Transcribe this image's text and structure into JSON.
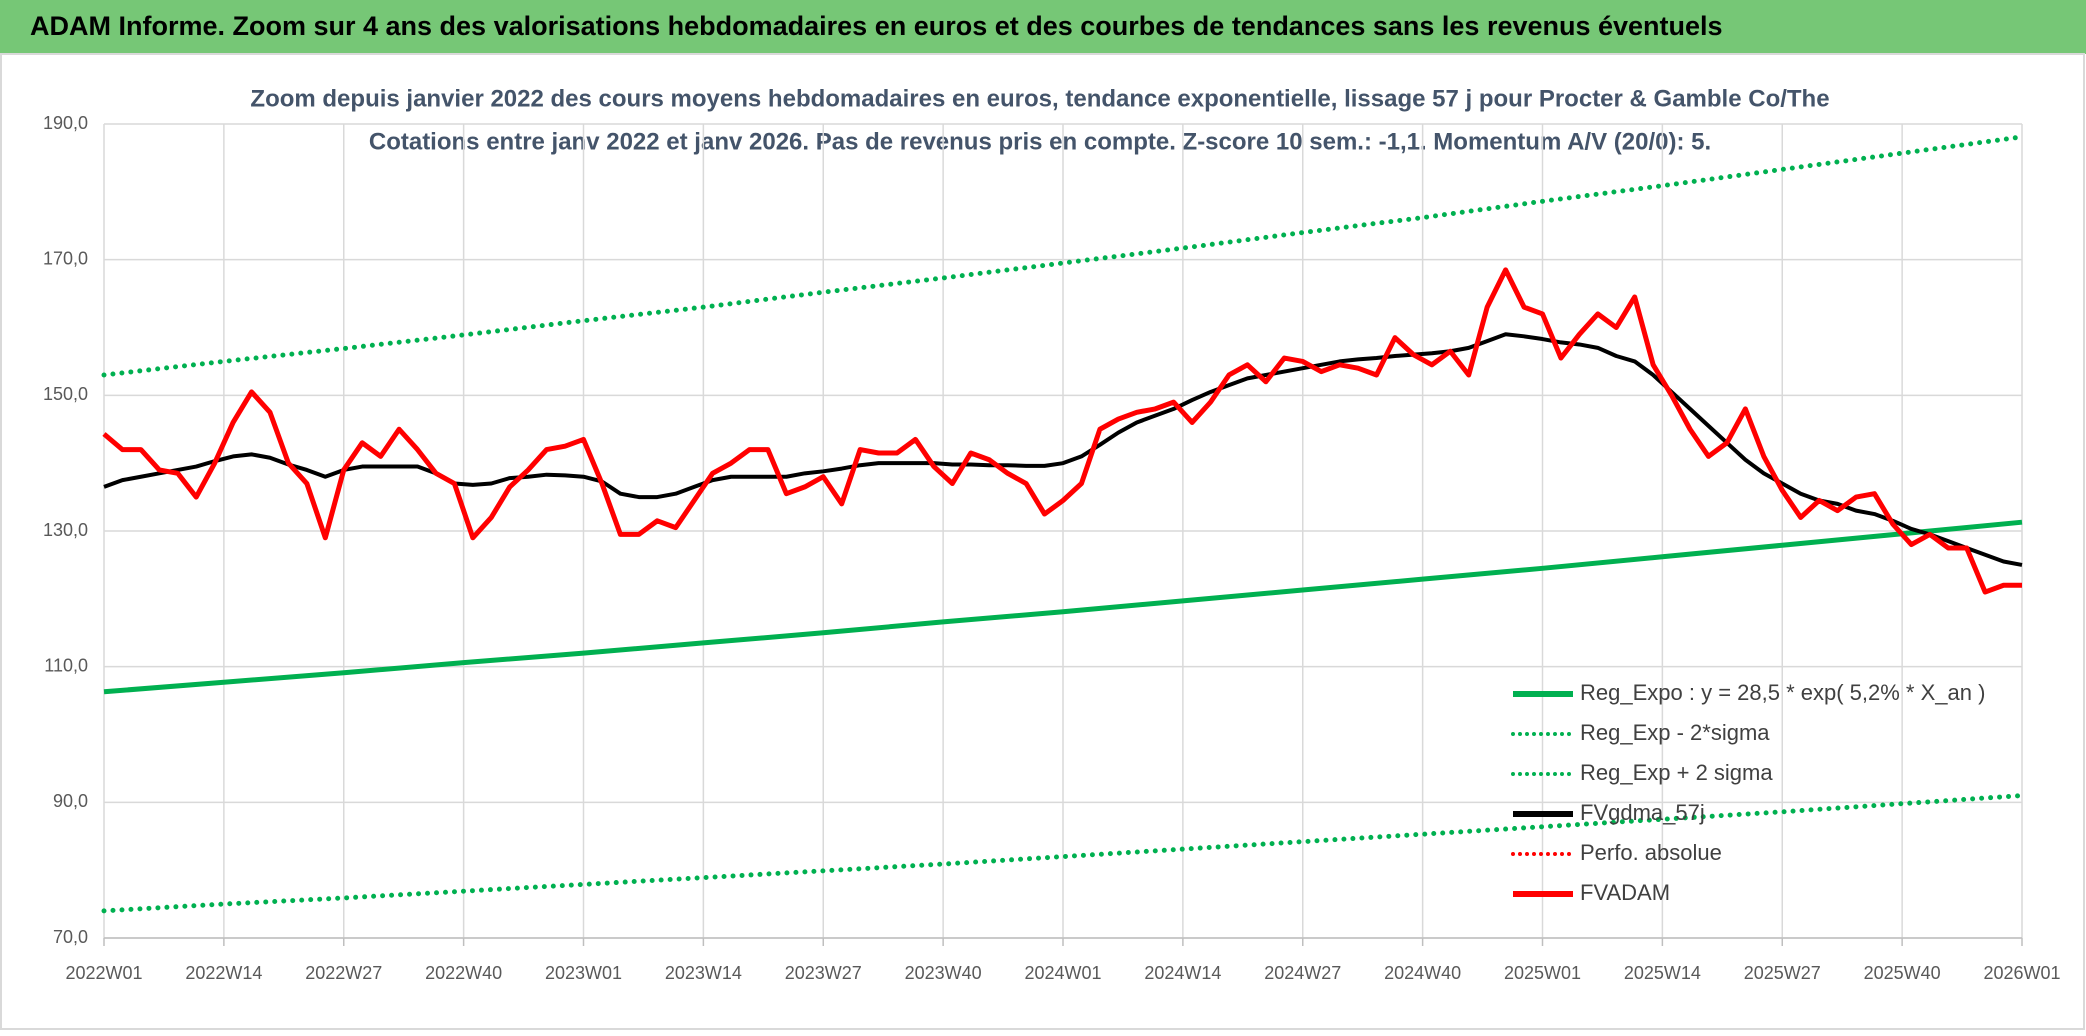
{
  "header": {
    "title": "ADAM Informe. Zoom sur 4 ans des valorisations hebdomadaires en euros et des courbes de tendances sans les revenus éventuels"
  },
  "chart_data": {
    "type": "line",
    "title": "Zoom depuis janvier 2022 des cours moyens hebdomadaires en euros, tendance exponentielle, lissage 57 j pour Procter & Gamble Co/The",
    "subtitle": "Cotations entre janv 2022 et janv 2026. Pas de revenus pris en compte. Z-score 10 sem.: -1,1. Momentum A/V (20/0): 5.",
    "xlim": [
      0,
      208
    ],
    "xticks": [
      {
        "value": 0,
        "label": "2022W01"
      },
      {
        "value": 13,
        "label": "2022W14"
      },
      {
        "value": 26,
        "label": "2022W27"
      },
      {
        "value": 39,
        "label": "2022W40"
      },
      {
        "value": 52,
        "label": "2023W01"
      },
      {
        "value": 65,
        "label": "2023W14"
      },
      {
        "value": 78,
        "label": "2023W27"
      },
      {
        "value": 91,
        "label": "2023W40"
      },
      {
        "value": 104,
        "label": "2024W01"
      },
      {
        "value": 117,
        "label": "2024W14"
      },
      {
        "value": 130,
        "label": "2024W27"
      },
      {
        "value": 143,
        "label": "2024W40"
      },
      {
        "value": 156,
        "label": "2025W01"
      },
      {
        "value": 169,
        "label": "2025W14"
      },
      {
        "value": 182,
        "label": "2025W27"
      },
      {
        "value": 195,
        "label": "2025W40"
      },
      {
        "value": 208,
        "label": "2026W01"
      }
    ],
    "ylim": [
      70,
      190
    ],
    "yticks": [
      {
        "value": 70,
        "label": "70,0"
      },
      {
        "value": 90,
        "label": "90,0"
      },
      {
        "value": 110,
        "label": "110,0"
      },
      {
        "value": 130,
        "label": "130,0"
      },
      {
        "value": 150,
        "label": "150,0"
      },
      {
        "value": 170,
        "label": "170,0"
      },
      {
        "value": 190,
        "label": "190,0"
      }
    ],
    "grid": true,
    "legend": "lower right",
    "series": [
      {
        "name": "Reg_Expo : y = 28,5 * exp( 5,2% *  X_an )",
        "color": "#00b050",
        "style": "solid",
        "x": [
          0,
          13,
          26,
          39,
          52,
          65,
          78,
          91,
          104,
          117,
          130,
          143,
          156,
          169,
          182,
          195,
          208
        ],
        "values": [
          106.3,
          107.7,
          109.1,
          110.6,
          112.0,
          113.5,
          115.0,
          116.6,
          118.1,
          119.7,
          121.3,
          122.9,
          124.5,
          126.2,
          127.9,
          129.6,
          131.3
        ]
      },
      {
        "name": "Reg_Exp - 2*sigma",
        "color": "#00b050",
        "style": "dotted",
        "x": [
          0,
          13,
          26,
          39,
          52,
          65,
          78,
          91,
          104,
          117,
          130,
          143,
          156,
          169,
          182,
          195,
          208
        ],
        "values": [
          74.0,
          75.0,
          75.9,
          76.9,
          77.9,
          78.9,
          79.9,
          80.9,
          82.0,
          83.1,
          84.2,
          85.3,
          86.4,
          87.5,
          88.6,
          89.8,
          91.0
        ]
      },
      {
        "name": "Reg_Exp + 2 sigma",
        "color": "#00b050",
        "style": "dotted",
        "x": [
          0,
          13,
          26,
          39,
          52,
          65,
          78,
          91,
          104,
          117,
          130,
          143,
          156,
          169,
          182,
          195,
          208
        ],
        "values": [
          153.0,
          155.0,
          156.9,
          158.9,
          161.0,
          163.0,
          165.2,
          167.3,
          169.5,
          171.7,
          174.0,
          176.2,
          178.6,
          180.9,
          183.3,
          185.7,
          188.1
        ]
      },
      {
        "name": "FVgdma_57j",
        "color": "#000000",
        "style": "solid",
        "x": [
          0,
          2,
          4,
          6,
          8,
          10,
          12,
          14,
          16,
          18,
          20,
          22,
          24,
          26,
          28,
          30,
          32,
          34,
          36,
          38,
          40,
          42,
          44,
          46,
          48,
          50,
          52,
          54,
          56,
          58,
          60,
          62,
          64,
          66,
          68,
          70,
          72,
          74,
          76,
          78,
          80,
          82,
          84,
          86,
          88,
          90,
          92,
          94,
          96,
          98,
          100,
          102,
          104,
          106,
          108,
          110,
          112,
          114,
          116,
          118,
          120,
          122,
          124,
          126,
          128,
          130,
          132,
          134,
          136,
          138,
          140,
          142,
          144,
          146,
          148,
          150,
          152,
          154,
          156,
          158,
          160,
          162,
          164,
          166,
          168,
          170,
          172,
          174,
          176,
          178,
          180,
          182,
          184,
          186,
          188,
          190,
          192,
          194,
          196,
          198,
          200,
          202,
          204,
          206,
          208
        ],
        "values": [
          136.5,
          137.5,
          138,
          138.5,
          139,
          139.5,
          140.3,
          141,
          141.3,
          140.8,
          139.8,
          139,
          138,
          139,
          139.5,
          139.5,
          139.5,
          139.5,
          138.5,
          137,
          136.8,
          137,
          137.8,
          138,
          138.3,
          138.2,
          138,
          137.3,
          135.5,
          135,
          135,
          135.5,
          136.5,
          137.5,
          138,
          138,
          138,
          138,
          138.5,
          138.8,
          139.2,
          139.7,
          140,
          140,
          140,
          140,
          139.8,
          139.8,
          139.7,
          139.7,
          139.6,
          139.6,
          140,
          141,
          142.7,
          144.5,
          146,
          147,
          148,
          149.3,
          150.5,
          151.5,
          152.5,
          153,
          153.5,
          154,
          154.5,
          155,
          155.3,
          155.5,
          155.8,
          156,
          156.2,
          156.5,
          157,
          158,
          159,
          158.7,
          158.3,
          157.8,
          157.5,
          157,
          155.8,
          155,
          153,
          150.5,
          148,
          145.5,
          143,
          140.5,
          138.5,
          137,
          135.5,
          134.5,
          134,
          133,
          132.5,
          131.5,
          130.3,
          129.5,
          128.5,
          127.5,
          126.5,
          125.5,
          125
        ]
      },
      {
        "name": "Perfo. absolue",
        "color": "#ff0000",
        "style": "dotted",
        "x": [],
        "values": []
      },
      {
        "name": "FVADAM",
        "color": "#ff0000",
        "style": "solid",
        "x": [
          0,
          2,
          4,
          6,
          8,
          10,
          12,
          14,
          16,
          18,
          20,
          22,
          24,
          26,
          28,
          30,
          32,
          34,
          36,
          38,
          40,
          42,
          44,
          46,
          48,
          50,
          52,
          54,
          56,
          58,
          60,
          62,
          64,
          66,
          68,
          70,
          72,
          74,
          76,
          78,
          80,
          82,
          84,
          86,
          88,
          90,
          92,
          94,
          96,
          98,
          100,
          102,
          104,
          106,
          108,
          110,
          112,
          114,
          116,
          118,
          120,
          122,
          124,
          126,
          128,
          130,
          132,
          134,
          136,
          138,
          140,
          142,
          144,
          146,
          148,
          150,
          152,
          154,
          156,
          158,
          160,
          162,
          164,
          166,
          168,
          170,
          172,
          174,
          176,
          178,
          180,
          182,
          184,
          186,
          188,
          190,
          192,
          194,
          196,
          198,
          200,
          202,
          204,
          206,
          208
        ],
        "values": [
          144.3,
          142,
          142,
          139,
          138.5,
          135,
          140,
          146,
          150.5,
          147.5,
          140,
          137,
          129,
          139,
          143,
          141,
          145,
          142,
          138.5,
          137,
          129,
          132,
          136.5,
          139,
          142,
          142.5,
          143.5,
          137,
          129.5,
          129.5,
          131.5,
          130.5,
          134.5,
          138.5,
          140,
          142,
          142,
          135.5,
          136.5,
          138,
          134,
          142,
          141.5,
          141.5,
          143.5,
          139.5,
          137,
          141.5,
          140.5,
          138.5,
          137,
          132.5,
          134.5,
          137,
          145,
          146.5,
          147.5,
          148,
          149,
          146,
          149,
          153,
          154.5,
          152,
          155.5,
          155,
          153.5,
          154.5,
          154,
          153,
          158.5,
          156,
          154.5,
          156.5,
          153,
          163,
          168.5,
          163,
          162,
          155.5,
          159,
          162,
          160,
          164.5,
          154.5,
          150,
          145,
          141,
          143,
          148,
          141,
          136,
          132,
          134.5,
          133,
          135,
          135.5,
          131,
          128,
          129.5,
          127.5,
          127.5,
          121,
          122,
          122
        ]
      }
    ]
  }
}
